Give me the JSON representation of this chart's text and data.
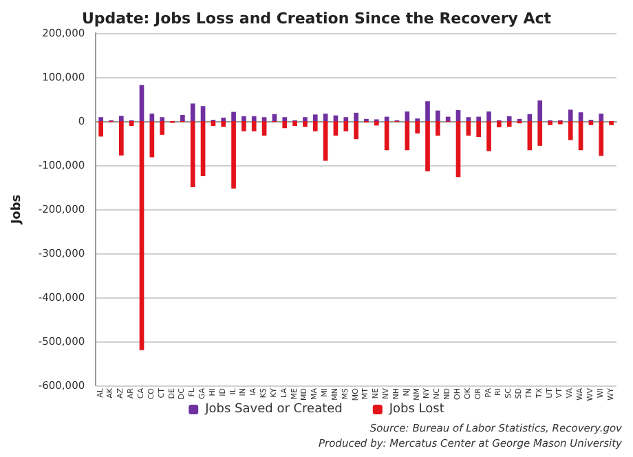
{
  "chart_data": {
    "type": "bar",
    "title": "Update: Jobs Loss and Creation Since the Recovery Act",
    "ylabel": "Jobs",
    "categories": [
      "AL",
      "AK",
      "AZ",
      "AR",
      "CA",
      "CO",
      "CT",
      "DE",
      "DC",
      "FL",
      "GA",
      "HI",
      "ID",
      "IL",
      "IN",
      "IA",
      "KS",
      "KY",
      "LA",
      "ME",
      "MD",
      "MA",
      "MI",
      "MN",
      "MS",
      "MO",
      "MT",
      "NE",
      "NV",
      "NH",
      "NJ",
      "NM",
      "NY",
      "NC",
      "ND",
      "OH",
      "OK",
      "OR",
      "PA",
      "RI",
      "SC",
      "SD",
      "TN",
      "TX",
      "UT",
      "VT",
      "VA",
      "WA",
      "WV",
      "WI",
      "WY"
    ],
    "series": [
      {
        "name": "Jobs Saved or Created",
        "color": "#7030a0",
        "values": [
          9000,
          2000,
          12000,
          2000,
          82000,
          17000,
          9000,
          null,
          14000,
          40000,
          34000,
          3000,
          8000,
          21000,
          11000,
          11000,
          9000,
          16000,
          9000,
          2000,
          9000,
          15000,
          17000,
          13000,
          9000,
          19000,
          5000,
          4000,
          10000,
          2000,
          22000,
          6000,
          45000,
          24000,
          10000,
          25000,
          9000,
          10000,
          22000,
          2000,
          11000,
          5000,
          16000,
          47000,
          2000,
          2000,
          26000,
          20000,
          3000,
          17000,
          null
        ]
      },
      {
        "name": "Jobs Lost",
        "color": "#e3131b",
        "values": [
          -35000,
          -2000,
          -78000,
          -11000,
          -520000,
          -82000,
          -31000,
          -4000,
          -2000,
          -150000,
          -125000,
          -11000,
          -13000,
          -153000,
          -23000,
          -23000,
          -33000,
          -2000,
          -16000,
          -11000,
          -13000,
          -23000,
          -90000,
          -33000,
          -23000,
          -41000,
          -3000,
          -10000,
          -66000,
          -2000,
          -66000,
          -28000,
          -114000,
          -33000,
          -2000,
          -127000,
          -33000,
          -36000,
          -68000,
          -14000,
          -13000,
          -5000,
          -66000,
          -56000,
          -9000,
          -7000,
          -43000,
          -66000,
          -9000,
          -79000,
          -9000
        ]
      }
    ],
    "stacked": true,
    "ylim": [
      -600000,
      200000
    ],
    "yticks": [
      {
        "value": -600000,
        "label": "-600,000"
      },
      {
        "value": -500000,
        "label": "-500,000"
      },
      {
        "value": -400000,
        "label": "-400,000"
      },
      {
        "value": -300000,
        "label": "-300,000"
      },
      {
        "value": -200000,
        "label": "-200,000"
      },
      {
        "value": -100000,
        "label": "-100,000"
      },
      0,
      {
        "value": 100000,
        "label": "100,000"
      },
      {
        "value": 200000,
        "label": "200,000"
      }
    ],
    "grid": "y",
    "legend": "bottom",
    "annotations": [
      "Source: Bureau of Labor Statistics, Recovery.gov",
      "Produced by: Mercatus Center at George Mason University"
    ]
  }
}
